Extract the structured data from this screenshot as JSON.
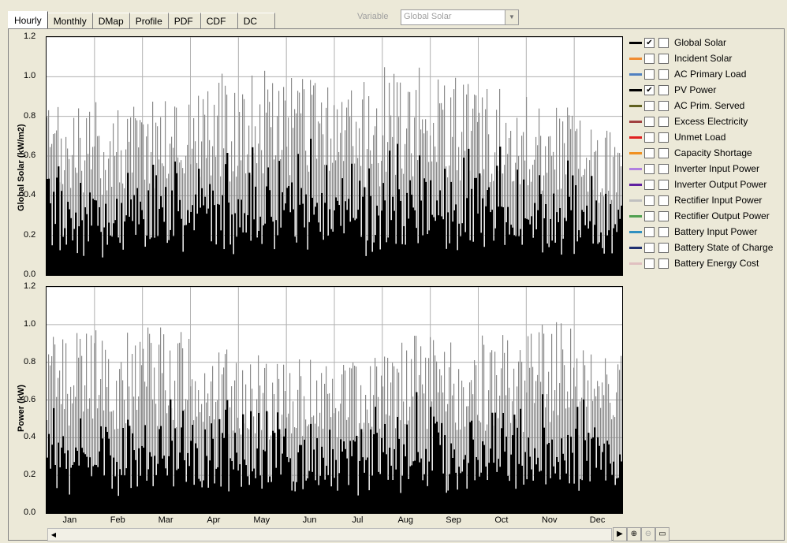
{
  "tabs": [
    {
      "label": "Hourly",
      "active": true
    },
    {
      "label": "Monthly",
      "active": false
    },
    {
      "label": "DMap",
      "active": false
    },
    {
      "label": "Profile",
      "active": false
    },
    {
      "label": "PDF",
      "active": false
    },
    {
      "label": "CDF",
      "active": false
    },
    {
      "label": "DC",
      "active": false
    }
  ],
  "variable": {
    "label": "Variable",
    "selected": "Global Solar"
  },
  "legend": [
    {
      "label": "Global Solar",
      "color": "#000000",
      "checked": true
    },
    {
      "label": "Incident Solar",
      "color": "#f08c32",
      "checked": false
    },
    {
      "label": "AC Primary Load",
      "color": "#5080c0",
      "checked": false
    },
    {
      "label": "PV Power",
      "color": "#000000",
      "checked": true
    },
    {
      "label": "AC Prim. Served",
      "color": "#606020",
      "checked": false
    },
    {
      "label": "Excess Electricity",
      "color": "#a04040",
      "checked": false
    },
    {
      "label": "Unmet Load",
      "color": "#e02020",
      "checked": false
    },
    {
      "label": "Capacity Shortage",
      "color": "#f09020",
      "checked": false
    },
    {
      "label": "Inverter Input Power",
      "color": "#b080e0",
      "checked": false
    },
    {
      "label": "Inverter Output Power",
      "color": "#6020a0",
      "checked": false
    },
    {
      "label": "Rectifier Input Power",
      "color": "#c0c0c0",
      "checked": false
    },
    {
      "label": "Rectifier Output Power",
      "color": "#50a050",
      "checked": false
    },
    {
      "label": "Battery Input Power",
      "color": "#3090c0",
      "checked": false
    },
    {
      "label": "Battery State of Charge",
      "color": "#203070",
      "checked": false
    },
    {
      "label": "Battery Energy Cost",
      "color": "#e0c0c0",
      "checked": false
    }
  ],
  "chart_data": [
    {
      "type": "bar",
      "ylabel": "Global Solar (kW/m2)",
      "ylim": [
        0,
        1.2
      ],
      "yticks": [
        "0.0",
        "0.2",
        "0.4",
        "0.6",
        "0.8",
        "1.0",
        "1.2"
      ],
      "categories": [
        "Jan",
        "Feb",
        "Mar",
        "Apr",
        "May",
        "Jun",
        "Jul",
        "Aug",
        "Sep",
        "Oct",
        "Nov",
        "Dec"
      ],
      "series": [
        {
          "values_daily_peak_approx": [
            0.85,
            0.88,
            0.95,
            1.02,
            1.05,
            1.0,
            0.98,
            1.05,
            1.0,
            0.95,
            0.88,
            0.8
          ]
        }
      ],
      "grid": true
    },
    {
      "type": "bar",
      "ylabel": "Power (kW)",
      "ylim": [
        0,
        1.2
      ],
      "yticks": [
        "0.0",
        "0.2",
        "0.4",
        "0.6",
        "0.8",
        "1.0",
        "1.2"
      ],
      "categories": [
        "Jan",
        "Feb",
        "Mar",
        "Apr",
        "May",
        "Jun",
        "Jul",
        "Aug",
        "Sep",
        "Oct",
        "Nov",
        "Dec"
      ],
      "series": [
        {
          "values_daily_peak_approx": [
            1.0,
            0.98,
            1.0,
            0.88,
            0.85,
            0.82,
            0.85,
            0.95,
            0.92,
            0.95,
            1.03,
            0.9
          ]
        }
      ],
      "grid": true
    }
  ]
}
